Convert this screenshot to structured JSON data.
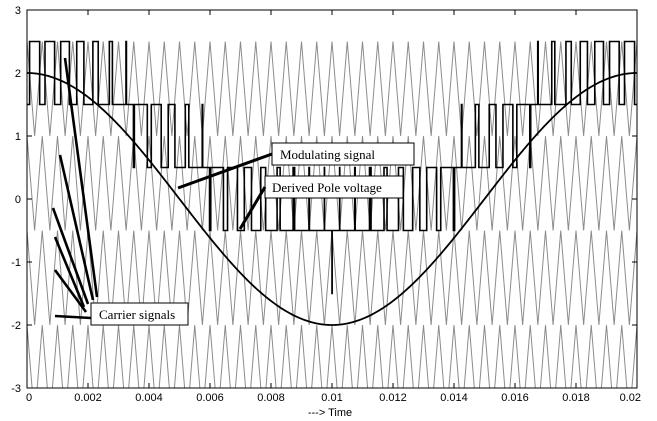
{
  "chart_data": {
    "type": "line",
    "title": "",
    "xlabel": "---> Time",
    "ylabel": "",
    "xlim": [
      0,
      0.02
    ],
    "ylim": [
      -3,
      3
    ],
    "grid": false,
    "x_ticks": [
      "0",
      "0.002",
      "0.004",
      "0.006",
      "0.008",
      "0.01",
      "0.012",
      "0.014",
      "0.016",
      "0.018",
      "0.02"
    ],
    "y_ticks": [
      "-3",
      "-2",
      "-1",
      "0",
      "1",
      "2",
      "3"
    ],
    "series": [
      {
        "role": "modulating",
        "function": "2*cos(2*pi*50*t)",
        "amplitude": 2,
        "frequency_hz": 50,
        "color": "#000000"
      },
      {
        "role": "carriers",
        "shape": "triangle",
        "count": 4,
        "bands": [
          [
            1,
            2.5
          ],
          [
            -0.5,
            1
          ],
          [
            -2,
            -0.5
          ],
          [
            -3.5,
            -2
          ]
        ],
        "period_s": 0.0005,
        "color": "#8c8c8c"
      },
      {
        "role": "pole-voltage",
        "shape": "multilevel-step",
        "levels": [
          -2.5,
          -1.5,
          -0.5,
          0.5,
          1.5,
          2.5
        ],
        "color": "#000000"
      }
    ],
    "annotations": [
      {
        "text": "Modulating signal",
        "points_to": [
          0.0049,
          0.2
        ]
      },
      {
        "text": "Derived Pole voltage",
        "points_to": [
          0.0072,
          -0.9
        ]
      },
      {
        "text": "Carrier signals",
        "points_to": [
          0.0016,
          -1.8
        ]
      }
    ]
  }
}
